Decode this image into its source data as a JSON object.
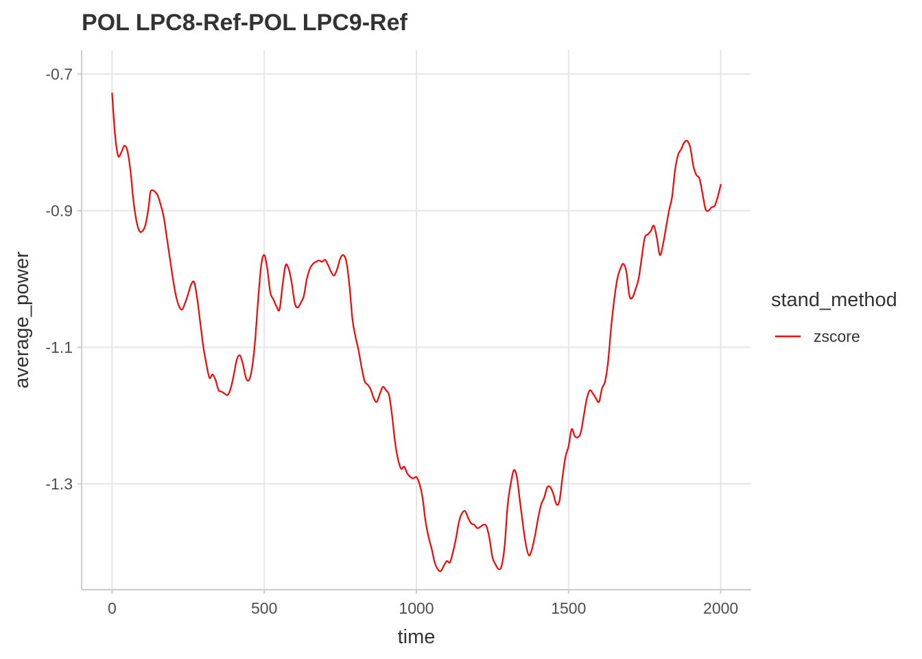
{
  "chart_data": {
    "type": "line",
    "title": "POL LPC8-Ref-POL LPC9-Ref",
    "xlabel": "time",
    "ylabel": "average_power",
    "xlim": [
      -100,
      2100
    ],
    "ylim": [
      -1.455,
      -0.665
    ],
    "x_ticks": [
      0,
      500,
      1000,
      1500,
      2000
    ],
    "x_tick_labels": [
      "0",
      "500",
      "1000",
      "1500",
      "2000"
    ],
    "y_ticks": [
      -0.7,
      -0.9,
      -1.1,
      -1.3
    ],
    "y_tick_labels": [
      "-0.7",
      "-0.9",
      "-1.1",
      "-1.3"
    ],
    "grid": true,
    "legend": {
      "title": "stand_method",
      "position": "right"
    },
    "series": [
      {
        "name": "zscore",
        "color": "#ff0000",
        "points": [
          [
            0,
            -0.728
          ],
          [
            10,
            -0.79
          ],
          [
            20,
            -0.82
          ],
          [
            30,
            -0.815
          ],
          [
            40,
            -0.805
          ],
          [
            50,
            -0.812
          ],
          [
            60,
            -0.84
          ],
          [
            70,
            -0.885
          ],
          [
            80,
            -0.915
          ],
          [
            90,
            -0.93
          ],
          [
            100,
            -0.93
          ],
          [
            110,
            -0.92
          ],
          [
            120,
            -0.895
          ],
          [
            125,
            -0.875
          ],
          [
            130,
            -0.87
          ],
          [
            140,
            -0.872
          ],
          [
            150,
            -0.878
          ],
          [
            160,
            -0.892
          ],
          [
            170,
            -0.91
          ],
          [
            180,
            -0.94
          ],
          [
            190,
            -0.97
          ],
          [
            200,
            -1.0
          ],
          [
            210,
            -1.025
          ],
          [
            220,
            -1.04
          ],
          [
            230,
            -1.045
          ],
          [
            240,
            -1.035
          ],
          [
            250,
            -1.022
          ],
          [
            260,
            -1.008
          ],
          [
            270,
            -1.005
          ],
          [
            280,
            -1.03
          ],
          [
            290,
            -1.065
          ],
          [
            300,
            -1.1
          ],
          [
            310,
            -1.125
          ],
          [
            320,
            -1.145
          ],
          [
            330,
            -1.14
          ],
          [
            340,
            -1.148
          ],
          [
            350,
            -1.163
          ],
          [
            360,
            -1.165
          ],
          [
            370,
            -1.168
          ],
          [
            380,
            -1.17
          ],
          [
            390,
            -1.16
          ],
          [
            400,
            -1.14
          ],
          [
            410,
            -1.118
          ],
          [
            420,
            -1.112
          ],
          [
            430,
            -1.125
          ],
          [
            440,
            -1.145
          ],
          [
            450,
            -1.148
          ],
          [
            460,
            -1.13
          ],
          [
            470,
            -1.09
          ],
          [
            480,
            -1.03
          ],
          [
            490,
            -0.98
          ],
          [
            500,
            -0.965
          ],
          [
            510,
            -0.985
          ],
          [
            520,
            -1.02
          ],
          [
            530,
            -1.03
          ],
          [
            540,
            -1.04
          ],
          [
            550,
            -1.045
          ],
          [
            560,
            -1.01
          ],
          [
            570,
            -0.98
          ],
          [
            580,
            -0.985
          ],
          [
            590,
            -1.005
          ],
          [
            600,
            -1.035
          ],
          [
            610,
            -1.042
          ],
          [
            620,
            -1.035
          ],
          [
            630,
            -1.025
          ],
          [
            640,
            -1.0
          ],
          [
            650,
            -0.985
          ],
          [
            660,
            -0.978
          ],
          [
            670,
            -0.975
          ],
          [
            680,
            -0.973
          ],
          [
            690,
            -0.975
          ],
          [
            700,
            -0.972
          ],
          [
            710,
            -0.98
          ],
          [
            720,
            -0.99
          ],
          [
            730,
            -0.995
          ],
          [
            740,
            -0.985
          ],
          [
            750,
            -0.97
          ],
          [
            760,
            -0.965
          ],
          [
            770,
            -0.975
          ],
          [
            780,
            -1.01
          ],
          [
            790,
            -1.06
          ],
          [
            800,
            -1.085
          ],
          [
            810,
            -1.105
          ],
          [
            820,
            -1.13
          ],
          [
            830,
            -1.15
          ],
          [
            840,
            -1.155
          ],
          [
            850,
            -1.162
          ],
          [
            860,
            -1.175
          ],
          [
            870,
            -1.18
          ],
          [
            880,
            -1.168
          ],
          [
            890,
            -1.158
          ],
          [
            900,
            -1.163
          ],
          [
            910,
            -1.17
          ],
          [
            920,
            -1.2
          ],
          [
            930,
            -1.24
          ],
          [
            940,
            -1.265
          ],
          [
            950,
            -1.278
          ],
          [
            960,
            -1.275
          ],
          [
            970,
            -1.285
          ],
          [
            980,
            -1.29
          ],
          [
            990,
            -1.292
          ],
          [
            1000,
            -1.29
          ],
          [
            1010,
            -1.3
          ],
          [
            1020,
            -1.32
          ],
          [
            1030,
            -1.355
          ],
          [
            1040,
            -1.378
          ],
          [
            1050,
            -1.395
          ],
          [
            1060,
            -1.415
          ],
          [
            1070,
            -1.425
          ],
          [
            1080,
            -1.428
          ],
          [
            1090,
            -1.42
          ],
          [
            1100,
            -1.413
          ],
          [
            1110,
            -1.415
          ],
          [
            1120,
            -1.4
          ],
          [
            1130,
            -1.38
          ],
          [
            1140,
            -1.355
          ],
          [
            1150,
            -1.343
          ],
          [
            1160,
            -1.34
          ],
          [
            1170,
            -1.35
          ],
          [
            1180,
            -1.358
          ],
          [
            1190,
            -1.36
          ],
          [
            1200,
            -1.365
          ],
          [
            1210,
            -1.363
          ],
          [
            1220,
            -1.36
          ],
          [
            1230,
            -1.362
          ],
          [
            1240,
            -1.38
          ],
          [
            1250,
            -1.408
          ],
          [
            1260,
            -1.418
          ],
          [
            1270,
            -1.425
          ],
          [
            1280,
            -1.42
          ],
          [
            1290,
            -1.39
          ],
          [
            1300,
            -1.33
          ],
          [
            1310,
            -1.3
          ],
          [
            1320,
            -1.28
          ],
          [
            1330,
            -1.29
          ],
          [
            1340,
            -1.325
          ],
          [
            1350,
            -1.36
          ],
          [
            1360,
            -1.39
          ],
          [
            1370,
            -1.405
          ],
          [
            1380,
            -1.395
          ],
          [
            1390,
            -1.375
          ],
          [
            1400,
            -1.35
          ],
          [
            1410,
            -1.33
          ],
          [
            1420,
            -1.32
          ],
          [
            1430,
            -1.305
          ],
          [
            1440,
            -1.305
          ],
          [
            1450,
            -1.315
          ],
          [
            1460,
            -1.33
          ],
          [
            1470,
            -1.325
          ],
          [
            1480,
            -1.29
          ],
          [
            1490,
            -1.26
          ],
          [
            1500,
            -1.245
          ],
          [
            1510,
            -1.22
          ],
          [
            1520,
            -1.23
          ],
          [
            1530,
            -1.232
          ],
          [
            1540,
            -1.225
          ],
          [
            1550,
            -1.2
          ],
          [
            1560,
            -1.175
          ],
          [
            1570,
            -1.163
          ],
          [
            1580,
            -1.168
          ],
          [
            1590,
            -1.175
          ],
          [
            1600,
            -1.18
          ],
          [
            1610,
            -1.16
          ],
          [
            1620,
            -1.15
          ],
          [
            1630,
            -1.12
          ],
          [
            1640,
            -1.07
          ],
          [
            1650,
            -1.03
          ],
          [
            1660,
            -1.0
          ],
          [
            1670,
            -0.985
          ],
          [
            1680,
            -0.978
          ],
          [
            1690,
            -0.99
          ],
          [
            1700,
            -1.025
          ],
          [
            1710,
            -1.027
          ],
          [
            1720,
            -1.015
          ],
          [
            1730,
            -1.0
          ],
          [
            1740,
            -0.97
          ],
          [
            1750,
            -0.94
          ],
          [
            1760,
            -0.935
          ],
          [
            1770,
            -0.93
          ],
          [
            1780,
            -0.922
          ],
          [
            1790,
            -0.94
          ],
          [
            1800,
            -0.965
          ],
          [
            1810,
            -0.95
          ],
          [
            1820,
            -0.925
          ],
          [
            1830,
            -0.9
          ],
          [
            1840,
            -0.88
          ],
          [
            1850,
            -0.84
          ],
          [
            1860,
            -0.818
          ],
          [
            1870,
            -0.81
          ],
          [
            1880,
            -0.8
          ],
          [
            1890,
            -0.798
          ],
          [
            1900,
            -0.808
          ],
          [
            1910,
            -0.835
          ],
          [
            1920,
            -0.848
          ],
          [
            1930,
            -0.853
          ],
          [
            1940,
            -0.875
          ],
          [
            1950,
            -0.898
          ],
          [
            1960,
            -0.9
          ],
          [
            1970,
            -0.895
          ],
          [
            1980,
            -0.893
          ],
          [
            1990,
            -0.88
          ],
          [
            2000,
            -0.862
          ]
        ]
      }
    ]
  }
}
